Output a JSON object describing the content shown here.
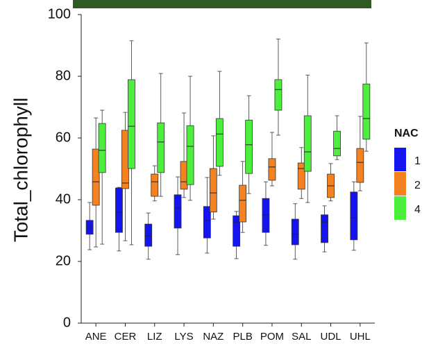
{
  "chart_data": {
    "type": "box",
    "ylabel": "Total_chlorophyll",
    "categories": [
      "ANE",
      "CER",
      "LIZ",
      "LYS",
      "NAZ",
      "PLB",
      "POM",
      "SAL",
      "UDL",
      "UHL"
    ],
    "ylim": [
      0,
      100
    ],
    "yticks": [
      0,
      20,
      40,
      60,
      80,
      100
    ],
    "legend_title": "NAC",
    "legend_position": "right",
    "series": [
      {
        "name": "1",
        "color": "#1414f0",
        "min": [
          23.8,
          23.4,
          20.7,
          22.2,
          22.7,
          20.9,
          25.2,
          20.7,
          23.1,
          23.6
        ],
        "q1": [
          28.8,
          29.4,
          24.9,
          30.8,
          27.6,
          24.9,
          29.4,
          25.4,
          26.1,
          27
        ],
        "median": [
          31,
          36,
          28.3,
          37.3,
          33.3,
          32.8,
          35.1,
          28.8,
          32.8,
          34.2
        ],
        "q3": [
          33.3,
          43.8,
          32.1,
          41.6,
          37.8,
          34.8,
          40.4,
          33.7,
          35.1,
          42.5
        ],
        "max": [
          39.1,
          44,
          35.7,
          47.4,
          47.2,
          36.2,
          45.8,
          38.7,
          38,
          45.8
        ]
      },
      {
        "name": "2",
        "color": "#f58220",
        "min": [
          24.7,
          26.7,
          39.6,
          40.7,
          33.7,
          29.4,
          44.5,
          40.4,
          39.6,
          42.9
        ],
        "q1": [
          38.2,
          43.6,
          41.1,
          43.4,
          36,
          32.8,
          46.3,
          43.4,
          40.7,
          45.6
        ],
        "median": [
          45.8,
          45.4,
          45.8,
          45.8,
          42.2,
          39.8,
          50.6,
          50.1,
          44.5,
          52.1
        ],
        "q3": [
          56.4,
          62.5,
          48.3,
          52.4,
          50.1,
          44.7,
          53.3,
          51.9,
          48.3,
          56.6
        ],
        "max": [
          66.5,
          68.3,
          51,
          68.1,
          60.7,
          52.4,
          61.8,
          56.9,
          51.7,
          67
        ]
      },
      {
        "name": "4",
        "color": "#4cf03c",
        "min": [
          25.6,
          25.4,
          41.1,
          39.8,
          47.9,
          42,
          60.9,
          39.1,
          53,
          55.7
        ],
        "q1": [
          48.8,
          50.1,
          48.8,
          44.9,
          50.8,
          48.5,
          69,
          49.2,
          54.2,
          59.6
        ],
        "median": [
          56,
          63.8,
          58.7,
          57.3,
          61.3,
          57.8,
          75.7,
          55.5,
          56.6,
          66.3
        ],
        "q3": [
          64.7,
          78.9,
          64.9,
          64,
          66.3,
          65.8,
          78.9,
          67.2,
          62.2,
          77.5
        ],
        "max": [
          69,
          91.5,
          80.9,
          80,
          81.6,
          73.7,
          92.1,
          80.4,
          67.2,
          90.8
        ]
      }
    ]
  }
}
